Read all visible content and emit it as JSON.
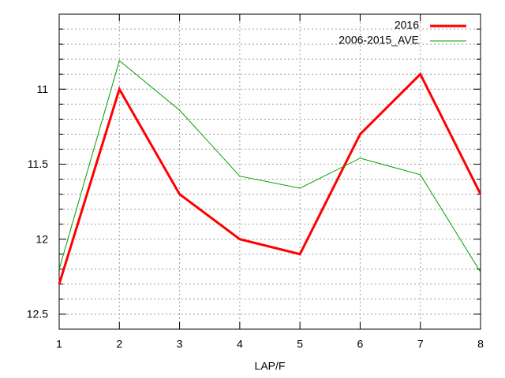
{
  "chart_data": {
    "type": "line",
    "x_label": "LAP/F",
    "x": [
      1,
      2,
      3,
      4,
      5,
      6,
      7,
      8
    ],
    "series": [
      {
        "name": "2016",
        "color": "#ff0000",
        "width": 3,
        "values": [
          12.3,
          11.0,
          11.7,
          12.0,
          12.1,
          11.3,
          10.9,
          11.7
        ]
      },
      {
        "name": "2006-2015_AVE",
        "color": "#00a000",
        "width": 1,
        "values": [
          12.2,
          10.81,
          11.14,
          11.58,
          11.66,
          11.46,
          11.57,
          12.22
        ]
      }
    ],
    "xlim": [
      1,
      8
    ],
    "xticks": [
      1,
      2,
      3,
      4,
      5,
      6,
      7,
      8
    ],
    "ylim": [
      10.5,
      12.6
    ],
    "y_reversed": true,
    "yticks": [
      11,
      11.5,
      12,
      12.5
    ],
    "minor_yticks": [
      10.6,
      10.7,
      10.8,
      10.9,
      11.1,
      11.2,
      11.3,
      11.4,
      11.6,
      11.7,
      11.8,
      11.9,
      12.1,
      12.2,
      12.3,
      12.4
    ],
    "grid": true,
    "legend": "top-right"
  }
}
